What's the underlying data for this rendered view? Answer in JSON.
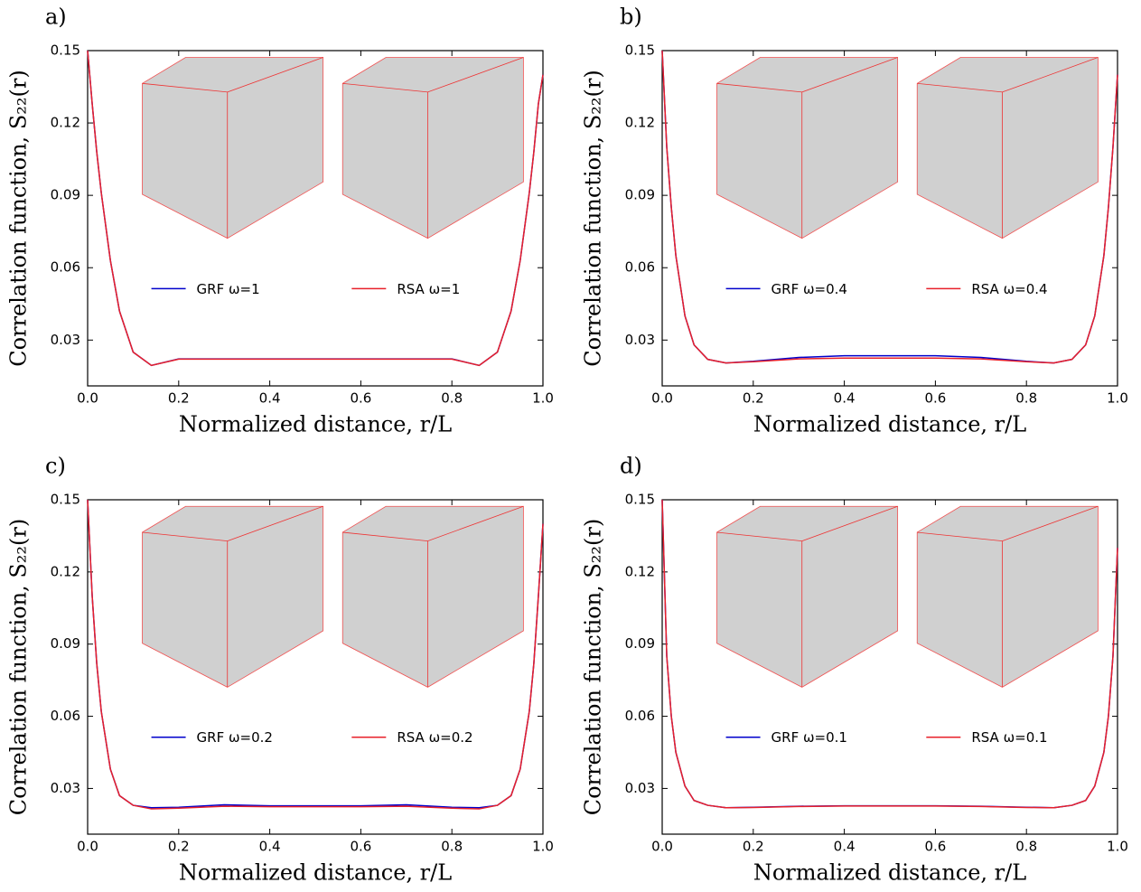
{
  "chart_data": [
    {
      "type": "line",
      "title": "a)",
      "xlabel": "Normalized distance, r/L",
      "ylabel": "Correlation function, S₂₂(r)",
      "x": [
        0,
        0.01,
        0.02,
        0.03,
        0.05,
        0.07,
        0.1,
        0.14,
        0.2,
        0.3,
        0.4,
        0.5,
        0.6,
        0.7,
        0.8,
        0.86,
        0.9,
        0.93,
        0.95,
        0.97,
        0.98,
        0.99,
        1.0
      ],
      "series": [
        {
          "name": "GRF ω=1",
          "color": "#0000cc",
          "values": [
            0.15,
            0.128,
            0.108,
            0.091,
            0.063,
            0.042,
            0.025,
            0.0195,
            0.0222,
            0.0222,
            0.0222,
            0.0222,
            0.0222,
            0.0222,
            0.0222,
            0.0195,
            0.025,
            0.042,
            0.063,
            0.091,
            0.108,
            0.128,
            0.14
          ]
        },
        {
          "name": "RSA ω=1",
          "color": "#e8202a",
          "values": [
            0.15,
            0.128,
            0.108,
            0.091,
            0.063,
            0.042,
            0.025,
            0.0195,
            0.0221,
            0.0221,
            0.0221,
            0.0221,
            0.0221,
            0.0221,
            0.0221,
            0.0195,
            0.025,
            0.042,
            0.063,
            0.091,
            0.108,
            0.128,
            0.14
          ]
        }
      ],
      "xlim": [
        0,
        1
      ],
      "ylim": [
        0.011,
        0.15
      ],
      "xticks": [
        {
          "value": 0,
          "label": "0.0"
        },
        0.2,
        0.4,
        0.6,
        0.8,
        {
          "value": 1,
          "label": "1.0"
        }
      ],
      "yticks": [
        0.03,
        0.06,
        0.09,
        0.12,
        0.15
      ]
    },
    {
      "type": "line",
      "title": "b)",
      "xlabel": "Normalized distance, r/L",
      "ylabel": "Correlation function, S₂₂(r)",
      "x": [
        0,
        0.01,
        0.02,
        0.03,
        0.05,
        0.07,
        0.1,
        0.14,
        0.2,
        0.3,
        0.4,
        0.5,
        0.6,
        0.7,
        0.8,
        0.86,
        0.9,
        0.93,
        0.95,
        0.97,
        0.98,
        0.99,
        1.0
      ],
      "series": [
        {
          "name": "GRF ω=0.4",
          "color": "#0000cc",
          "values": [
            0.15,
            0.11,
            0.085,
            0.065,
            0.04,
            0.028,
            0.022,
            0.0205,
            0.0212,
            0.0228,
            0.0235,
            0.0235,
            0.0235,
            0.0228,
            0.0212,
            0.0205,
            0.022,
            0.028,
            0.04,
            0.065,
            0.085,
            0.11,
            0.14
          ]
        },
        {
          "name": "RSA ω=0.4",
          "color": "#e8202a",
          "values": [
            0.15,
            0.11,
            0.085,
            0.065,
            0.04,
            0.028,
            0.022,
            0.0205,
            0.021,
            0.0222,
            0.0225,
            0.0225,
            0.0225,
            0.0222,
            0.021,
            0.0205,
            0.022,
            0.028,
            0.04,
            0.065,
            0.085,
            0.11,
            0.14
          ]
        }
      ],
      "xlim": [
        0,
        1
      ],
      "ylim": [
        0.011,
        0.15
      ],
      "xticks": [
        {
          "value": 0,
          "label": "0.0"
        },
        0.2,
        0.4,
        0.6,
        0.8,
        {
          "value": 1,
          "label": "1.0"
        }
      ],
      "yticks": [
        0.03,
        0.06,
        0.09,
        0.12,
        0.15
      ]
    },
    {
      "type": "line",
      "title": "c)",
      "xlabel": "Normalized distance, r/L",
      "ylabel": "Correlation function, S₂₂(r)",
      "x": [
        0,
        0.01,
        0.02,
        0.03,
        0.05,
        0.07,
        0.1,
        0.14,
        0.2,
        0.3,
        0.4,
        0.5,
        0.6,
        0.7,
        0.8,
        0.86,
        0.9,
        0.93,
        0.95,
        0.97,
        0.98,
        0.99,
        1.0
      ],
      "series": [
        {
          "name": "GRF ω=0.2",
          "color": "#0000cc",
          "values": [
            0.15,
            0.11,
            0.082,
            0.062,
            0.038,
            0.027,
            0.023,
            0.022,
            0.0222,
            0.0232,
            0.0228,
            0.0228,
            0.0228,
            0.0232,
            0.0222,
            0.022,
            0.023,
            0.027,
            0.038,
            0.062,
            0.082,
            0.11,
            0.14
          ]
        },
        {
          "name": "RSA ω=0.2",
          "color": "#e8202a",
          "values": [
            0.15,
            0.11,
            0.082,
            0.062,
            0.038,
            0.027,
            0.023,
            0.0215,
            0.0218,
            0.0226,
            0.0224,
            0.0224,
            0.0224,
            0.0226,
            0.0218,
            0.0215,
            0.023,
            0.027,
            0.038,
            0.062,
            0.082,
            0.11,
            0.14
          ]
        }
      ],
      "xlim": [
        0,
        1
      ],
      "ylim": [
        0.011,
        0.15
      ],
      "xticks": [
        {
          "value": 0,
          "label": "0.0"
        },
        0.2,
        0.4,
        0.6,
        0.8,
        {
          "value": 1,
          "label": "1.0"
        }
      ],
      "yticks": [
        0.03,
        0.06,
        0.09,
        0.12,
        0.15
      ]
    },
    {
      "type": "line",
      "title": "d)",
      "xlabel": "Normalized distance, r/L",
      "ylabel": "Correlation function, S₂₂(r)",
      "x": [
        0,
        0.01,
        0.02,
        0.03,
        0.05,
        0.07,
        0.1,
        0.14,
        0.2,
        0.3,
        0.4,
        0.5,
        0.6,
        0.7,
        0.8,
        0.86,
        0.9,
        0.93,
        0.95,
        0.97,
        0.98,
        0.99,
        1.0
      ],
      "series": [
        {
          "name": "GRF ω=0.1",
          "color": "#0000cc",
          "values": [
            0.15,
            0.085,
            0.06,
            0.045,
            0.031,
            0.025,
            0.023,
            0.022,
            0.0222,
            0.0226,
            0.0228,
            0.0228,
            0.0228,
            0.0226,
            0.0222,
            0.022,
            0.023,
            0.025,
            0.031,
            0.045,
            0.06,
            0.085,
            0.13
          ]
        },
        {
          "name": "RSA ω=0.1",
          "color": "#e8202a",
          "values": [
            0.15,
            0.085,
            0.06,
            0.045,
            0.031,
            0.025,
            0.023,
            0.022,
            0.0221,
            0.0225,
            0.0227,
            0.0227,
            0.0227,
            0.0225,
            0.0221,
            0.022,
            0.023,
            0.025,
            0.031,
            0.045,
            0.06,
            0.085,
            0.13
          ]
        }
      ],
      "xlim": [
        0,
        1
      ],
      "ylim": [
        0.011,
        0.15
      ],
      "xticks": [
        {
          "value": 0,
          "label": "0.0"
        },
        0.2,
        0.4,
        0.6,
        0.8,
        {
          "value": 1,
          "label": "1.0"
        }
      ],
      "yticks": [
        0.03,
        0.06,
        0.09,
        0.12,
        0.15
      ]
    }
  ]
}
